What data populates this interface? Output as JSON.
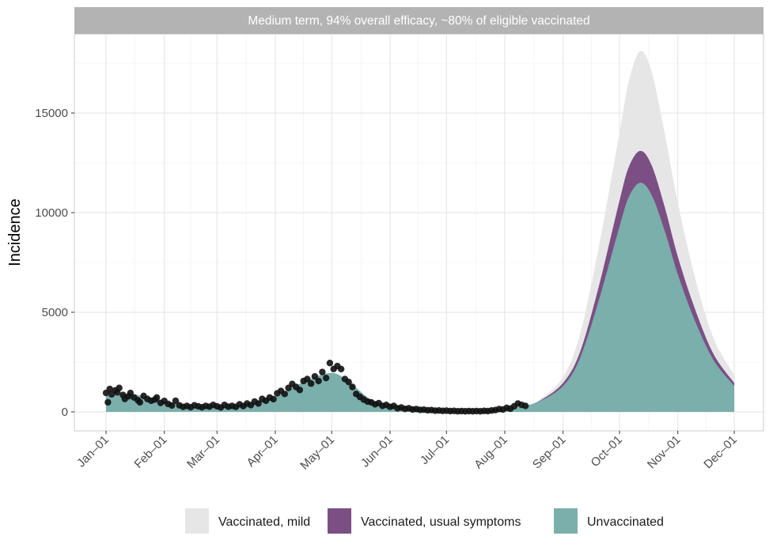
{
  "chart_data": {
    "type": "area",
    "strip_title": "Medium term, 94% overall efficacy, ~80% of eligible vaccinated",
    "xlabel": "",
    "ylabel": "Incidence",
    "xlim": [
      "2021-01-01",
      "2021-12-01"
    ],
    "ylim": [
      -750,
      19200
    ],
    "x_ticks": [
      {
        "date": "2021-01-01",
        "label": "Jan–01"
      },
      {
        "date": "2021-02-01",
        "label": "Feb–01"
      },
      {
        "date": "2021-03-01",
        "label": "Mar–01"
      },
      {
        "date": "2021-04-01",
        "label": "Apr–01"
      },
      {
        "date": "2021-05-01",
        "label": "May–01"
      },
      {
        "date": "2021-06-01",
        "label": "Jun–01"
      },
      {
        "date": "2021-07-01",
        "label": "Jul–01"
      },
      {
        "date": "2021-08-01",
        "label": "Aug–01"
      },
      {
        "date": "2021-09-01",
        "label": "Sep–01"
      },
      {
        "date": "2021-10-01",
        "label": "Oct–01"
      },
      {
        "date": "2021-11-01",
        "label": "Nov–01"
      },
      {
        "date": "2021-12-01",
        "label": "Dec–01"
      }
    ],
    "y_ticks": [
      0,
      5000,
      10000,
      15000
    ],
    "y_tick_labels": [
      "0",
      "5000",
      "10000",
      "15000"
    ],
    "grid": true,
    "legend_position": "bottom",
    "series": [
      {
        "name": "Vaccinated, mild",
        "color": "#e6e6e6"
      },
      {
        "name": "Vaccinated, usual symptoms",
        "color": "#7b4f84"
      },
      {
        "name": "Unvaccinated",
        "color": "#7aafab"
      }
    ],
    "curve_points": [
      {
        "x": "2021-01-01",
        "unvaccinated": 800,
        "usual_top": 800,
        "mild_top": 800
      },
      {
        "x": "2021-01-15",
        "unvaccinated": 880,
        "usual_top": 880,
        "mild_top": 880
      },
      {
        "x": "2021-02-01",
        "unvaccinated": 500,
        "usual_top": 500,
        "mild_top": 500
      },
      {
        "x": "2021-02-15",
        "unvaccinated": 300,
        "usual_top": 300,
        "mild_top": 300
      },
      {
        "x": "2021-03-01",
        "unvaccinated": 280,
        "usual_top": 280,
        "mild_top": 280
      },
      {
        "x": "2021-03-15",
        "unvaccinated": 380,
        "usual_top": 380,
        "mild_top": 380
      },
      {
        "x": "2021-04-01",
        "unvaccinated": 750,
        "usual_top": 750,
        "mild_top": 750
      },
      {
        "x": "2021-04-15",
        "unvaccinated": 1450,
        "usual_top": 1450,
        "mild_top": 1450
      },
      {
        "x": "2021-05-01",
        "unvaccinated": 1950,
        "usual_top": 1950,
        "mild_top": 1950
      },
      {
        "x": "2021-05-12",
        "unvaccinated": 1350,
        "usual_top": 1350,
        "mild_top": 1350
      },
      {
        "x": "2021-05-22",
        "unvaccinated": 600,
        "usual_top": 600,
        "mild_top": 600
      },
      {
        "x": "2021-06-01",
        "unvaccinated": 380,
        "usual_top": 380,
        "mild_top": 380
      },
      {
        "x": "2021-06-15",
        "unvaccinated": 180,
        "usual_top": 180,
        "mild_top": 180
      },
      {
        "x": "2021-07-01",
        "unvaccinated": 70,
        "usual_top": 70,
        "mild_top": 70
      },
      {
        "x": "2021-07-15",
        "unvaccinated": 40,
        "usual_top": 40,
        "mild_top": 40
      },
      {
        "x": "2021-08-01",
        "unvaccinated": 150,
        "usual_top": 150,
        "mild_top": 150
      },
      {
        "x": "2021-08-12",
        "unvaccinated": 300,
        "usual_top": 300,
        "mild_top": 300
      },
      {
        "x": "2021-08-20",
        "unvaccinated": 550,
        "usual_top": 580,
        "mild_top": 640
      },
      {
        "x": "2021-09-01",
        "unvaccinated": 1300,
        "usual_top": 1450,
        "mild_top": 1750
      },
      {
        "x": "2021-09-10",
        "unvaccinated": 2700,
        "usual_top": 3000,
        "mild_top": 3900
      },
      {
        "x": "2021-09-20",
        "unvaccinated": 5600,
        "usual_top": 6300,
        "mild_top": 8300
      },
      {
        "x": "2021-10-01",
        "unvaccinated": 9300,
        "usual_top": 10600,
        "mild_top": 14000
      },
      {
        "x": "2021-10-06",
        "unvaccinated": 10800,
        "usual_top": 12300,
        "mild_top": 16600
      },
      {
        "x": "2021-10-12",
        "unvaccinated": 11500,
        "usual_top": 13100,
        "mild_top": 18100
      },
      {
        "x": "2021-10-18",
        "unvaccinated": 10900,
        "usual_top": 12400,
        "mild_top": 17100
      },
      {
        "x": "2021-10-25",
        "unvaccinated": 9100,
        "usual_top": 10300,
        "mild_top": 14000
      },
      {
        "x": "2021-11-01",
        "unvaccinated": 6900,
        "usual_top": 7800,
        "mild_top": 10500
      },
      {
        "x": "2021-11-10",
        "unvaccinated": 4600,
        "usual_top": 5200,
        "mild_top": 6800
      },
      {
        "x": "2021-11-20",
        "unvaccinated": 2600,
        "usual_top": 2900,
        "mild_top": 3700
      },
      {
        "x": "2021-12-01",
        "unvaccinated": 1300,
        "usual_top": 1450,
        "mild_top": 1850
      }
    ],
    "observed_points": [
      {
        "x": "2021-01-01",
        "y": 950
      },
      {
        "x": "2021-01-02",
        "y": 480
      },
      {
        "x": "2021-01-03",
        "y": 1150
      },
      {
        "x": "2021-01-04",
        "y": 880
      },
      {
        "x": "2021-01-06",
        "y": 1080
      },
      {
        "x": "2021-01-07",
        "y": 980
      },
      {
        "x": "2021-01-08",
        "y": 1200
      },
      {
        "x": "2021-01-10",
        "y": 850
      },
      {
        "x": "2021-01-11",
        "y": 650
      },
      {
        "x": "2021-01-13",
        "y": 780
      },
      {
        "x": "2021-01-14",
        "y": 950
      },
      {
        "x": "2021-01-16",
        "y": 720
      },
      {
        "x": "2021-01-18",
        "y": 580
      },
      {
        "x": "2021-01-19",
        "y": 480
      },
      {
        "x": "2021-01-21",
        "y": 800
      },
      {
        "x": "2021-01-23",
        "y": 650
      },
      {
        "x": "2021-01-25",
        "y": 560
      },
      {
        "x": "2021-01-27",
        "y": 620
      },
      {
        "x": "2021-01-28",
        "y": 720
      },
      {
        "x": "2021-01-30",
        "y": 450
      },
      {
        "x": "2021-02-01",
        "y": 550
      },
      {
        "x": "2021-02-03",
        "y": 400
      },
      {
        "x": "2021-02-05",
        "y": 320
      },
      {
        "x": "2021-02-07",
        "y": 560
      },
      {
        "x": "2021-02-09",
        "y": 330
      },
      {
        "x": "2021-02-11",
        "y": 250
      },
      {
        "x": "2021-02-13",
        "y": 300
      },
      {
        "x": "2021-02-15",
        "y": 230
      },
      {
        "x": "2021-02-17",
        "y": 330
      },
      {
        "x": "2021-02-19",
        "y": 280
      },
      {
        "x": "2021-02-21",
        "y": 230
      },
      {
        "x": "2021-02-23",
        "y": 300
      },
      {
        "x": "2021-02-25",
        "y": 260
      },
      {
        "x": "2021-02-27",
        "y": 350
      },
      {
        "x": "2021-03-01",
        "y": 280
      },
      {
        "x": "2021-03-03",
        "y": 220
      },
      {
        "x": "2021-03-05",
        "y": 350
      },
      {
        "x": "2021-03-07",
        "y": 260
      },
      {
        "x": "2021-03-09",
        "y": 300
      },
      {
        "x": "2021-03-11",
        "y": 250
      },
      {
        "x": "2021-03-13",
        "y": 380
      },
      {
        "x": "2021-03-15",
        "y": 290
      },
      {
        "x": "2021-03-17",
        "y": 420
      },
      {
        "x": "2021-03-19",
        "y": 340
      },
      {
        "x": "2021-03-21",
        "y": 520
      },
      {
        "x": "2021-03-23",
        "y": 420
      },
      {
        "x": "2021-03-25",
        "y": 650
      },
      {
        "x": "2021-03-27",
        "y": 560
      },
      {
        "x": "2021-03-29",
        "y": 720
      },
      {
        "x": "2021-03-31",
        "y": 640
      },
      {
        "x": "2021-04-02",
        "y": 930
      },
      {
        "x": "2021-04-04",
        "y": 1050
      },
      {
        "x": "2021-04-06",
        "y": 900
      },
      {
        "x": "2021-04-08",
        "y": 1200
      },
      {
        "x": "2021-04-10",
        "y": 1400
      },
      {
        "x": "2021-04-12",
        "y": 1250
      },
      {
        "x": "2021-04-14",
        "y": 1100
      },
      {
        "x": "2021-04-16",
        "y": 1550
      },
      {
        "x": "2021-04-18",
        "y": 1650
      },
      {
        "x": "2021-04-20",
        "y": 1420
      },
      {
        "x": "2021-04-22",
        "y": 1780
      },
      {
        "x": "2021-04-24",
        "y": 1550
      },
      {
        "x": "2021-04-26",
        "y": 2000
      },
      {
        "x": "2021-04-28",
        "y": 1700
      },
      {
        "x": "2021-04-30",
        "y": 2450
      },
      {
        "x": "2021-05-02",
        "y": 2150
      },
      {
        "x": "2021-05-04",
        "y": 2300
      },
      {
        "x": "2021-05-06",
        "y": 2150
      },
      {
        "x": "2021-05-08",
        "y": 1650
      },
      {
        "x": "2021-05-10",
        "y": 1500
      },
      {
        "x": "2021-05-12",
        "y": 1250
      },
      {
        "x": "2021-05-14",
        "y": 900
      },
      {
        "x": "2021-05-16",
        "y": 750
      },
      {
        "x": "2021-05-18",
        "y": 620
      },
      {
        "x": "2021-05-20",
        "y": 520
      },
      {
        "x": "2021-05-22",
        "y": 480
      },
      {
        "x": "2021-05-24",
        "y": 380
      },
      {
        "x": "2021-05-26",
        "y": 440
      },
      {
        "x": "2021-05-28",
        "y": 300
      },
      {
        "x": "2021-05-30",
        "y": 350
      },
      {
        "x": "2021-06-01",
        "y": 250
      },
      {
        "x": "2021-06-03",
        "y": 300
      },
      {
        "x": "2021-06-05",
        "y": 180
      },
      {
        "x": "2021-06-07",
        "y": 220
      },
      {
        "x": "2021-06-09",
        "y": 150
      },
      {
        "x": "2021-06-11",
        "y": 180
      },
      {
        "x": "2021-06-13",
        "y": 120
      },
      {
        "x": "2021-06-15",
        "y": 140
      },
      {
        "x": "2021-06-17",
        "y": 100
      },
      {
        "x": "2021-06-19",
        "y": 110
      },
      {
        "x": "2021-06-21",
        "y": 80
      },
      {
        "x": "2021-06-23",
        "y": 90
      },
      {
        "x": "2021-06-25",
        "y": 60
      },
      {
        "x": "2021-06-27",
        "y": 70
      },
      {
        "x": "2021-06-29",
        "y": 50
      },
      {
        "x": "2021-07-01",
        "y": 60
      },
      {
        "x": "2021-07-03",
        "y": 40
      },
      {
        "x": "2021-07-05",
        "y": 50
      },
      {
        "x": "2021-07-07",
        "y": 30
      },
      {
        "x": "2021-07-09",
        "y": 40
      },
      {
        "x": "2021-07-11",
        "y": 30
      },
      {
        "x": "2021-07-13",
        "y": 40
      },
      {
        "x": "2021-07-15",
        "y": 30
      },
      {
        "x": "2021-07-17",
        "y": 40
      },
      {
        "x": "2021-07-19",
        "y": 30
      },
      {
        "x": "2021-07-21",
        "y": 50
      },
      {
        "x": "2021-07-23",
        "y": 40
      },
      {
        "x": "2021-07-25",
        "y": 70
      },
      {
        "x": "2021-07-27",
        "y": 90
      },
      {
        "x": "2021-07-29",
        "y": 140
      },
      {
        "x": "2021-07-31",
        "y": 120
      },
      {
        "x": "2021-08-02",
        "y": 200
      },
      {
        "x": "2021-08-04",
        "y": 160
      },
      {
        "x": "2021-08-06",
        "y": 280
      },
      {
        "x": "2021-08-08",
        "y": 420
      },
      {
        "x": "2021-08-10",
        "y": 350
      },
      {
        "x": "2021-08-12",
        "y": 300
      }
    ]
  },
  "legend": {
    "items": [
      {
        "label": "Vaccinated, mild",
        "color": "#e6e6e6"
      },
      {
        "label": "Vaccinated, usual symptoms",
        "color": "#7b4f84"
      },
      {
        "label": "Unvaccinated",
        "color": "#7aafab"
      }
    ]
  }
}
